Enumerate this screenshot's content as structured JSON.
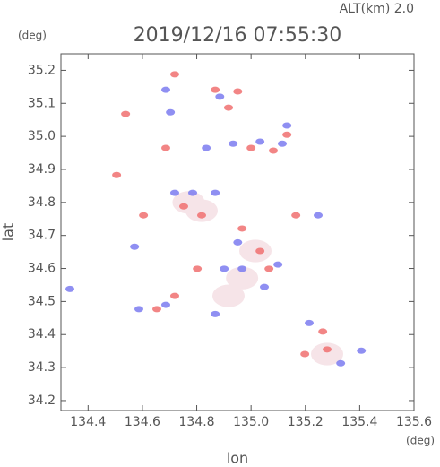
{
  "chart_data": {
    "type": "scatter",
    "title": "2019/12/16 07:55:30",
    "subtitle": "ALT(km) 2.0",
    "x_label": "lon",
    "y_label": "lat",
    "x_unit": "(deg)",
    "y_unit": "(deg)",
    "xlim": [
      134.3,
      135.6
    ],
    "ylim": [
      34.17,
      35.25
    ],
    "xticks": [
      134.4,
      134.6,
      134.8,
      {
        "value": 135,
        "label": "135.0"
      },
      135.2,
      135.4,
      135.6
    ],
    "yticks": [
      34.2,
      34.3,
      34.4,
      34.5,
      34.6,
      34.7,
      34.8,
      34.9,
      {
        "value": 35,
        "label": "35.0"
      },
      35.1,
      35.2
    ],
    "grid": false,
    "series": [
      {
        "color": "#f6e4e8",
        "x": [
          134.818,
          134.917,
          134.967,
          135.28,
          135.016,
          134.77
        ],
        "values": [
          34.775,
          34.517,
          34.571,
          34.341,
          34.653,
          34.8
        ]
      },
      {
        "color": "#f07070",
        "x": [
          134.538,
          134.505,
          134.686,
          134.719,
          134.868,
          134.917,
          134.951,
          134.752,
          134.818,
          134.604,
          135.0,
          135.082,
          135.132,
          135.033,
          135.066,
          134.719,
          134.653,
          135.264,
          135.28,
          135.198,
          134.802,
          135.165,
          134.967
        ],
        "values": [
          35.068,
          34.883,
          34.965,
          35.188,
          35.141,
          35.087,
          35.136,
          34.788,
          34.761,
          34.761,
          34.965,
          34.957,
          35.005,
          34.653,
          34.599,
          34.517,
          34.477,
          34.409,
          34.355,
          34.341,
          34.599,
          34.761,
          34.721
        ]
      },
      {
        "color": "#7b7bf0",
        "x": [
          134.686,
          134.703,
          134.885,
          134.835,
          134.934,
          135.033,
          135.115,
          135.132,
          134.785,
          134.868,
          134.571,
          134.951,
          134.967,
          134.901,
          135.099,
          135.049,
          134.868,
          134.587,
          134.686,
          135.214,
          135.33,
          135.406,
          135.247,
          134.333,
          134.719
        ],
        "values": [
          35.141,
          35.073,
          35.12,
          34.965,
          34.978,
          34.984,
          34.978,
          35.033,
          34.829,
          34.829,
          34.666,
          34.679,
          34.599,
          34.599,
          34.612,
          34.544,
          34.462,
          34.477,
          34.49,
          34.435,
          34.313,
          34.351,
          34.761,
          34.538,
          34.829
        ]
      }
    ]
  }
}
